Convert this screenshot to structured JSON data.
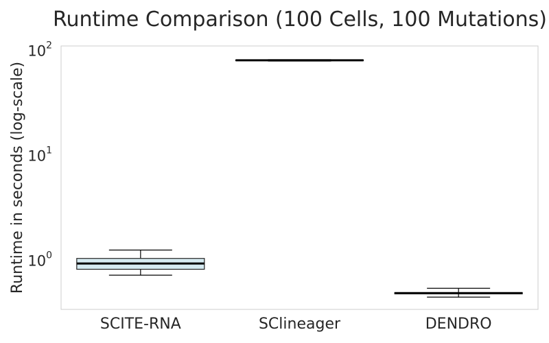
{
  "chart_data": {
    "type": "box",
    "title": "Runtime Comparison (100 Cells, 100 Mutations)",
    "xlabel": "",
    "ylabel": "Runtime in seconds (log-scale)",
    "y_scale": "log",
    "ylim": [
      0.34,
      110
    ],
    "yticks": [
      {
        "base": "10",
        "exp": "0",
        "value": 1
      },
      {
        "base": "10",
        "exp": "1",
        "value": 10
      },
      {
        "base": "10",
        "exp": "2",
        "value": 100
      }
    ],
    "grid": false,
    "legend": "none",
    "categories": [
      "SCITE-RNA",
      "SClineager",
      "DENDRO"
    ],
    "boxes": [
      {
        "category": "SCITE-RNA",
        "whisker_low": 0.72,
        "q1": 0.82,
        "median": 0.93,
        "q3": 1.04,
        "whisker_high": 1.25,
        "color": "#add8e6"
      },
      {
        "category": "SClineager",
        "whisker_low": 79.0,
        "q1": 79.6,
        "median": 80.3,
        "q3": 81.0,
        "whisker_high": 81.5,
        "color": "#90ee90"
      },
      {
        "category": "DENDRO",
        "whisker_low": 0.445,
        "q1": 0.478,
        "median": 0.485,
        "q3": 0.492,
        "whisker_high": 0.54,
        "color": "#f4a460"
      }
    ]
  }
}
